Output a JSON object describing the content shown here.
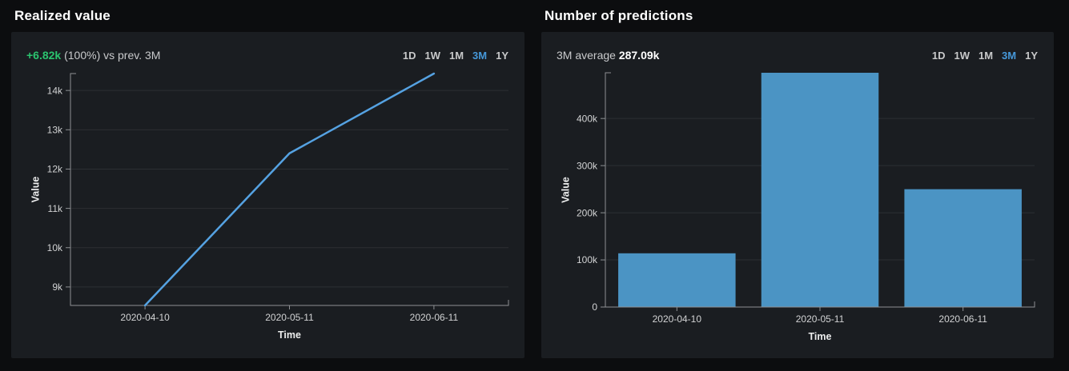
{
  "colors": {
    "page_bg": "#0c0d0f",
    "panel_bg": "#1a1d21",
    "title_text": "#ffffff",
    "muted_text": "#c9cacc",
    "delta_green": "#2bc46f",
    "accent_blue": "#4698d9",
    "line_blue": "#55a2e2",
    "bar_blue": "#4b94c4",
    "grid": "#2c2f33",
    "axis": "#8d9093",
    "tick_text": "#d2d3d4"
  },
  "panels": [
    {
      "title": "Realized value",
      "delta_value": "+6.82k",
      "delta_context": "(100%) vs prev. 3M",
      "ranges": [
        "1D",
        "1W",
        "1M",
        "3M",
        "1Y"
      ],
      "active_range": "3M"
    },
    {
      "title": "Number of predictions",
      "avg_label": "3M average",
      "avg_value": "287.09k",
      "ranges": [
        "1D",
        "1W",
        "1M",
        "3M",
        "1Y"
      ],
      "active_range": "3M"
    }
  ],
  "chart_data": [
    {
      "type": "line",
      "title": "Realized value",
      "xlabel": "Time",
      "ylabel": "Value",
      "grid": true,
      "legend": "none",
      "xlim_days": [
        0,
        94
      ],
      "ylim": [
        8530,
        14430
      ],
      "x_ticks": [
        {
          "label": "2020-04-10",
          "day": 16
        },
        {
          "label": "2020-05-11",
          "day": 47
        },
        {
          "label": "2020-06-11",
          "day": 78
        }
      ],
      "y_ticks": [
        {
          "value": 9000,
          "label": "9k"
        },
        {
          "value": 10000,
          "label": "10k"
        },
        {
          "value": 11000,
          "label": "11k"
        },
        {
          "value": 12000,
          "label": "12k"
        },
        {
          "value": 13000,
          "label": "13k"
        },
        {
          "value": 14000,
          "label": "14k"
        }
      ],
      "points": [
        {
          "date": "2020-04-10",
          "day": 16,
          "value": 8530
        },
        {
          "date": "2020-05-11",
          "day": 47,
          "value": 12400
        },
        {
          "date": "2020-06-11",
          "day": 78,
          "value": 14430
        }
      ]
    },
    {
      "type": "bar",
      "title": "Number of predictions",
      "xlabel": "Time",
      "ylabel": "Value",
      "grid": true,
      "legend": "none",
      "ylim": [
        0,
        497000
      ],
      "categories": [
        "2020-04-10",
        "2020-05-11",
        "2020-06-11"
      ],
      "values": [
        114000,
        497000,
        250000
      ],
      "y_ticks": [
        {
          "value": 0,
          "label": "0"
        },
        {
          "value": 100000,
          "label": "100k"
        },
        {
          "value": 200000,
          "label": "200k"
        },
        {
          "value": 300000,
          "label": "300k"
        },
        {
          "value": 400000,
          "label": "400k"
        }
      ]
    }
  ]
}
